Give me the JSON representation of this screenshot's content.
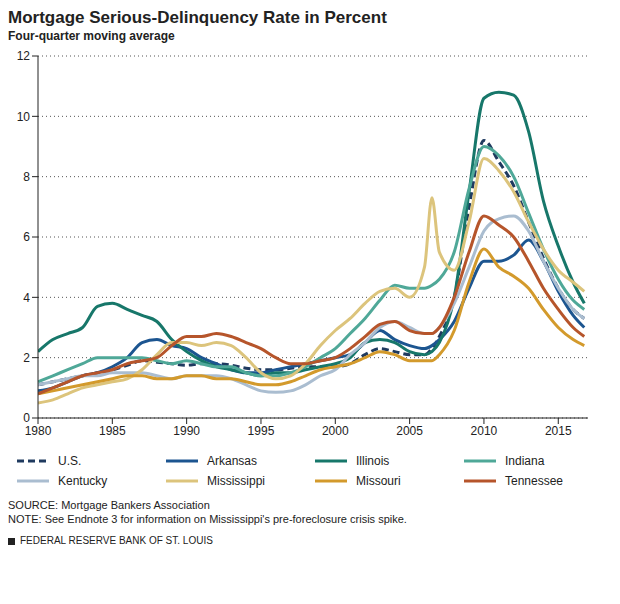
{
  "chart_data": {
    "type": "line",
    "title": "Mortgage Serious-Delinquency Rate in Percent",
    "subtitle": "Four-quarter moving average",
    "source": "SOURCE: Mortgage Bankers Association",
    "note": "NOTE: See Endnote 3 for information on Mississippi's pre-foreclosure crisis spike.",
    "credit": "FEDERAL RESERVE BANK OF ST. LOUIS",
    "x": [
      1980,
      1981,
      1982,
      1983,
      1984,
      1985,
      1986,
      1987,
      1988,
      1989,
      1990,
      1991,
      1992,
      1993,
      1994,
      1995,
      1996,
      1997,
      1998,
      1999,
      2000,
      2001,
      2002,
      2003,
      2004,
      2005,
      2006,
      2006.5,
      2007,
      2008,
      2009,
      2010,
      2011,
      2012,
      2013,
      2014,
      2015,
      2016,
      2016.75
    ],
    "xlim": [
      1980,
      2017
    ],
    "xticks": [
      1980,
      1985,
      1990,
      1995,
      2000,
      2005,
      2010,
      2015
    ],
    "ylim": [
      0,
      12
    ],
    "yticks": [
      0,
      2,
      4,
      6,
      8,
      10,
      12
    ],
    "grid": true,
    "series": [
      {
        "name": "U.S.",
        "color": "#1f3a5f",
        "line_style": "dashed",
        "values": [
          1.1,
          1.2,
          1.3,
          1.4,
          1.5,
          1.6,
          1.75,
          1.9,
          1.85,
          1.8,
          1.75,
          1.8,
          1.8,
          1.75,
          1.65,
          1.6,
          1.6,
          1.65,
          1.7,
          1.7,
          1.7,
          1.8,
          2.1,
          2.3,
          2.2,
          2.1,
          2.1,
          2.3,
          2.7,
          4.0,
          7.0,
          9.2,
          8.5,
          7.7,
          6.5,
          5.3,
          4.3,
          3.6,
          3.3
        ]
      },
      {
        "name": "Arkansas",
        "color": "#1c5590",
        "line_style": "solid",
        "values": [
          0.9,
          1.0,
          1.2,
          1.4,
          1.5,
          1.7,
          2.0,
          2.5,
          2.6,
          2.4,
          2.3,
          2.0,
          1.8,
          1.6,
          1.5,
          1.5,
          1.6,
          1.7,
          1.8,
          1.9,
          2.0,
          2.1,
          2.5,
          2.9,
          2.6,
          2.4,
          2.3,
          2.4,
          2.6,
          3.2,
          4.3,
          5.2,
          5.2,
          5.4,
          5.9,
          5.2,
          4.2,
          3.4,
          3.0
        ]
      },
      {
        "name": "Illinois",
        "color": "#17776a",
        "line_style": "solid",
        "values": [
          2.2,
          2.6,
          2.8,
          3.0,
          3.7,
          3.8,
          3.6,
          3.4,
          3.2,
          2.6,
          2.2,
          1.9,
          1.7,
          1.6,
          1.5,
          1.4,
          1.5,
          1.5,
          1.6,
          1.7,
          1.8,
          2.0,
          2.5,
          2.6,
          2.5,
          2.2,
          2.1,
          2.2,
          2.5,
          4.0,
          7.5,
          10.6,
          10.8,
          10.7,
          9.5,
          7.2,
          5.7,
          4.5,
          3.8
        ]
      },
      {
        "name": "Indiana",
        "color": "#4fa898",
        "line_style": "solid",
        "values": [
          1.2,
          1.4,
          1.6,
          1.8,
          2.0,
          2.0,
          2.0,
          2.0,
          1.9,
          1.8,
          1.9,
          1.8,
          1.7,
          1.7,
          1.5,
          1.4,
          1.4,
          1.5,
          1.7,
          2.0,
          2.3,
          2.8,
          3.3,
          3.9,
          4.4,
          4.3,
          4.3,
          4.4,
          4.6,
          5.5,
          7.6,
          9.0,
          8.7,
          8.0,
          6.8,
          5.6,
          4.6,
          3.9,
          3.6
        ]
      },
      {
        "name": "Kentucky",
        "color": "#aabdd0",
        "line_style": "solid",
        "values": [
          1.1,
          1.2,
          1.3,
          1.4,
          1.4,
          1.5,
          1.5,
          1.5,
          1.4,
          1.3,
          1.4,
          1.4,
          1.4,
          1.3,
          1.1,
          0.9,
          0.85,
          0.9,
          1.1,
          1.4,
          1.6,
          2.1,
          2.5,
          3.0,
          3.2,
          3.0,
          2.8,
          2.8,
          3.0,
          3.8,
          5.0,
          6.2,
          6.6,
          6.7,
          6.2,
          5.2,
          4.3,
          3.6,
          3.3
        ]
      },
      {
        "name": "Mississippi",
        "color": "#dcc47c",
        "line_style": "solid",
        "values": [
          0.5,
          0.6,
          0.8,
          1.0,
          1.1,
          1.2,
          1.3,
          1.6,
          2.1,
          2.5,
          2.5,
          2.4,
          2.5,
          2.4,
          2.0,
          1.5,
          1.3,
          1.4,
          1.8,
          2.4,
          2.9,
          3.3,
          3.8,
          4.2,
          4.3,
          4.0,
          5.0,
          7.3,
          5.5,
          4.9,
          6.5,
          8.6,
          8.2,
          7.5,
          6.5,
          5.6,
          4.9,
          4.5,
          4.2
        ]
      },
      {
        "name": "Missouri",
        "color": "#d39a2c",
        "line_style": "solid",
        "values": [
          0.8,
          0.9,
          1.0,
          1.1,
          1.2,
          1.3,
          1.4,
          1.4,
          1.3,
          1.3,
          1.4,
          1.4,
          1.3,
          1.3,
          1.2,
          1.1,
          1.1,
          1.2,
          1.4,
          1.6,
          1.7,
          1.8,
          2.0,
          2.2,
          2.1,
          1.9,
          1.9,
          1.9,
          2.1,
          2.9,
          4.5,
          5.6,
          5.0,
          4.7,
          4.3,
          3.6,
          3.0,
          2.6,
          2.4
        ]
      },
      {
        "name": "Tennessee",
        "color": "#b6552b",
        "line_style": "solid",
        "values": [
          0.8,
          1.0,
          1.2,
          1.4,
          1.5,
          1.6,
          1.8,
          1.9,
          2.0,
          2.4,
          2.7,
          2.7,
          2.8,
          2.7,
          2.5,
          2.3,
          2.0,
          1.8,
          1.8,
          1.9,
          2.0,
          2.3,
          2.7,
          3.1,
          3.2,
          2.9,
          2.8,
          2.8,
          3.0,
          4.0,
          5.5,
          6.7,
          6.4,
          6.0,
          5.2,
          4.3,
          3.6,
          3.0,
          2.7
        ]
      }
    ]
  }
}
